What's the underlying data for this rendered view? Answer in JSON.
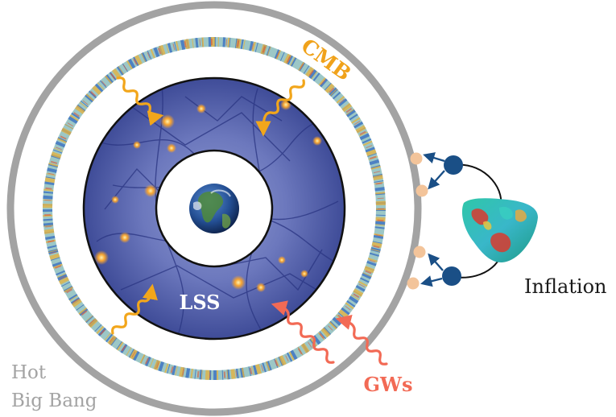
{
  "labels": {
    "cmb": "CMB",
    "lss": "LSS",
    "gws": "GWs",
    "inflation": "Inflation",
    "hot_big_bang_line1": "Hot",
    "hot_big_bang_line2": "Big Bang"
  },
  "colors": {
    "hot_big_bang": "#a3a3a3",
    "cmb_label": "#f0a21a",
    "cmb_arrow": "#f2a61b",
    "gws": "#f26a55",
    "lss_fill": "#4b5aa4",
    "lss_text": "#ffffff",
    "inflation_particle": "#1a4f86",
    "inflation_dot": "#f3c49a",
    "inflation_text": "#1a1a1a"
  },
  "icons": {
    "earth": "earth-icon",
    "inflation_field": "inflation-field-icon"
  }
}
